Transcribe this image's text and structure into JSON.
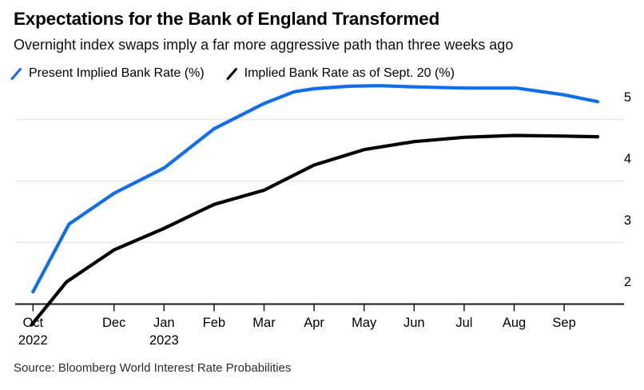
{
  "header": {
    "title": "Expectations for the Bank of England Transformed",
    "subtitle": "Overnight index swaps imply a far more aggressive path than three weeks ago"
  },
  "legend": {
    "present_label": "Present Implied Bank Rate (%)",
    "sept20_label": "Implied Bank Rate as of Sept. 20 (%)"
  },
  "footer": {
    "source": "Source: Bloomberg World Interest Rate Probabilities"
  },
  "colors": {
    "present_line": "#0f6df2",
    "sept20_line": "#000000",
    "gridline": "#e4e4e4",
    "axis": "#1a1a1a"
  },
  "chart_data": {
    "type": "line",
    "title": "Expectations for the Bank of England Transformed",
    "subtitle": "Overnight index swaps imply a far more aggressive path than three weeks ago",
    "x_unit": "months since Oct 1 2022 (0 = Oct 1 2022, 3 = Jan 1 2023)",
    "ylabel": "Implied Bank Rate (%)",
    "ylim": [
      1.9,
      5.75
    ],
    "grid": "horizontal",
    "legend_position": "top-left",
    "yticks": [
      {
        "value": 5,
        "label": "5"
      },
      {
        "value": 4,
        "label": "4"
      },
      {
        "value": 3,
        "label": "3"
      },
      {
        "value": 2,
        "label": "2"
      }
    ],
    "xticks": [
      {
        "m": 0.38,
        "label": "Oct",
        "sub": "2022"
      },
      {
        "m": 2,
        "label": "Dec",
        "sub": ""
      },
      {
        "m": 3,
        "label": "Jan",
        "sub": "2023"
      },
      {
        "m": 4,
        "label": "Feb",
        "sub": ""
      },
      {
        "m": 5,
        "label": "Mar",
        "sub": ""
      },
      {
        "m": 6,
        "label": "Apr",
        "sub": ""
      },
      {
        "m": 7,
        "label": "May",
        "sub": ""
      },
      {
        "m": 8,
        "label": "Jun",
        "sub": ""
      },
      {
        "m": 9,
        "label": "Jul",
        "sub": ""
      },
      {
        "m": 10,
        "label": "Aug",
        "sub": ""
      },
      {
        "m": 11,
        "label": "Sep",
        "sub": ""
      }
    ],
    "series": [
      {
        "name": "Implied Bank Rate as of Sept. 20 (%)",
        "color_key": "sept20_line",
        "points": [
          [
            0.35,
            1.66
          ],
          [
            1.05,
            2.36
          ],
          [
            2.0,
            2.88
          ],
          [
            3.0,
            3.23
          ],
          [
            4.0,
            3.62
          ],
          [
            5.0,
            3.85
          ],
          [
            6.0,
            4.26
          ],
          [
            7.0,
            4.51
          ],
          [
            8.0,
            4.64
          ],
          [
            9.0,
            4.71
          ],
          [
            10.0,
            4.74
          ],
          [
            11.0,
            4.73
          ],
          [
            11.67,
            4.72
          ]
        ]
      },
      {
        "name": "Present Implied Bank Rate (%)",
        "color_key": "present_line",
        "points": [
          [
            0.38,
            2.2
          ],
          [
            1.1,
            3.3
          ],
          [
            2.0,
            3.8
          ],
          [
            3.0,
            4.21
          ],
          [
            4.0,
            4.85
          ],
          [
            5.0,
            5.26
          ],
          [
            5.6,
            5.45
          ],
          [
            6.0,
            5.5
          ],
          [
            6.7,
            5.54
          ],
          [
            7.3,
            5.55
          ],
          [
            8.0,
            5.53
          ],
          [
            9.0,
            5.51
          ],
          [
            10.05,
            5.51
          ],
          [
            11.0,
            5.4
          ],
          [
            11.67,
            5.29
          ]
        ]
      }
    ]
  }
}
